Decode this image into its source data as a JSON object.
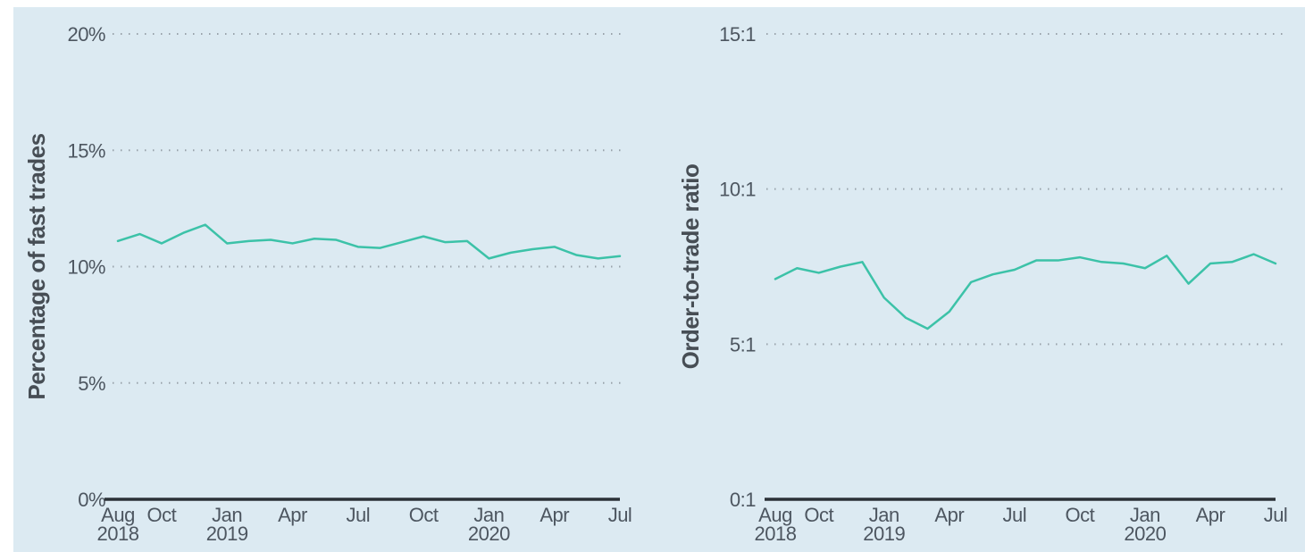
{
  "panel": {
    "background": "#dceaf2"
  },
  "chart_data": [
    {
      "type": "line",
      "title": "",
      "ylabel": "Percentage of fast trades",
      "xlabel": "",
      "legend": "none",
      "grid": "dotted-horizontal",
      "line_color": "#3cc2a8",
      "ylim": [
        0,
        20
      ],
      "x": [
        "Aug 2018",
        "Sep 2018",
        "Oct 2018",
        "Nov 2018",
        "Dec 2018",
        "Jan 2019",
        "Feb 2019",
        "Mar 2019",
        "Apr 2019",
        "May 2019",
        "Jun 2019",
        "Jul 2019",
        "Aug 2019",
        "Sep 2019",
        "Oct 2019",
        "Nov 2019",
        "Dec 2019",
        "Jan 2020",
        "Feb 2020",
        "Mar 2020",
        "Apr 2020",
        "May 2020",
        "Jun 2020",
        "Jul 2020"
      ],
      "values": [
        11.1,
        11.4,
        11.0,
        11.45,
        11.8,
        11.0,
        11.1,
        11.15,
        11.0,
        11.2,
        11.15,
        10.85,
        10.8,
        11.05,
        11.3,
        11.05,
        11.1,
        10.35,
        10.6,
        10.75,
        10.85,
        10.5,
        10.35,
        10.45
      ],
      "yticks": [
        {
          "value": 0,
          "label": "0%"
        },
        {
          "value": 5,
          "label": "5%"
        },
        {
          "value": 10,
          "label": "10%"
        },
        {
          "value": 15,
          "label": "15%"
        },
        {
          "value": 20,
          "label": "20%"
        }
      ],
      "xticks": [
        {
          "index": 0,
          "label": "Aug",
          "year": "2018"
        },
        {
          "index": 2,
          "label": "Oct"
        },
        {
          "index": 5,
          "label": "Jan",
          "year": "2019"
        },
        {
          "index": 8,
          "label": "Apr"
        },
        {
          "index": 11,
          "label": "Jul"
        },
        {
          "index": 14,
          "label": "Oct"
        },
        {
          "index": 17,
          "label": "Jan",
          "year": "2020"
        },
        {
          "index": 20,
          "label": "Apr"
        },
        {
          "index": 23,
          "label": "Jul"
        }
      ]
    },
    {
      "type": "line",
      "title": "",
      "ylabel": "Order-to-trade ratio",
      "xlabel": "",
      "legend": "none",
      "grid": "dotted-horizontal",
      "line_color": "#3cc2a8",
      "ylim": [
        0,
        15
      ],
      "x": [
        "Aug 2018",
        "Sep 2018",
        "Oct 2018",
        "Nov 2018",
        "Dec 2018",
        "Jan 2019",
        "Feb 2019",
        "Mar 2019",
        "Apr 2019",
        "May 2019",
        "Jun 2019",
        "Jul 2019",
        "Aug 2019",
        "Sep 2019",
        "Oct 2019",
        "Nov 2019",
        "Dec 2019",
        "Jan 2020",
        "Feb 2020",
        "Mar 2020",
        "Apr 2020",
        "May 2020",
        "Jun 2020",
        "Jul 2020"
      ],
      "values": [
        7.1,
        7.45,
        7.3,
        7.5,
        7.65,
        6.5,
        5.85,
        5.5,
        6.05,
        7.0,
        7.25,
        7.4,
        7.7,
        7.7,
        7.8,
        7.65,
        7.6,
        7.45,
        7.85,
        6.95,
        7.6,
        7.65,
        7.9,
        7.6
      ],
      "yticks": [
        {
          "value": 0,
          "label": "0:1"
        },
        {
          "value": 5,
          "label": "5:1"
        },
        {
          "value": 10,
          "label": "10:1"
        },
        {
          "value": 15,
          "label": "15:1"
        }
      ],
      "xticks": [
        {
          "index": 0,
          "label": "Aug",
          "year": "2018"
        },
        {
          "index": 2,
          "label": "Oct"
        },
        {
          "index": 5,
          "label": "Jan",
          "year": "2019"
        },
        {
          "index": 8,
          "label": "Apr"
        },
        {
          "index": 11,
          "label": "Jul"
        },
        {
          "index": 14,
          "label": "Oct"
        },
        {
          "index": 17,
          "label": "Jan",
          "year": "2020"
        },
        {
          "index": 20,
          "label": "Apr"
        },
        {
          "index": 23,
          "label": "Jul"
        }
      ]
    }
  ]
}
